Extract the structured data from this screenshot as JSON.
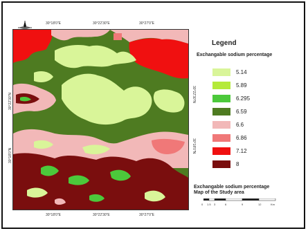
{
  "legend": {
    "title": "Legend",
    "subtitle": "Exchangable sodium percentage",
    "items": [
      {
        "label": "5.14",
        "color": "#d9f599"
      },
      {
        "label": "5.89",
        "color": "#b5ea3a"
      },
      {
        "label": "6.295",
        "color": "#4cc93b"
      },
      {
        "label": "6.59",
        "color": "#4e7b21"
      },
      {
        "label": "6.6",
        "color": "#f2b8b8"
      },
      {
        "label": "6.86",
        "color": "#f07878"
      },
      {
        "label": "7.12",
        "color": "#f01010"
      },
      {
        "label": "8",
        "color": "#7a0e0e"
      }
    ]
  },
  "caption": {
    "line1": "Exchangable sodium percentage",
    "line2": "Map of the Study area"
  },
  "coordinates": {
    "top": [
      "30°18'0\"E",
      "30°22'30\"E",
      "30°27'0\"E"
    ],
    "bottom": [
      "30°18'0\"E",
      "30°22'30\"E",
      "30°27'0\"E"
    ],
    "left": [
      "30°22'30\"N",
      "30°18'0\"N"
    ],
    "right": [
      "30°22'30\"N",
      "30°18'0\"N"
    ]
  },
  "scale": {
    "ticks": [
      "0",
      "1.5",
      "3",
      "6",
      "9",
      "12"
    ],
    "unit": "Km"
  },
  "north_arrow": "north-arrow-icon"
}
